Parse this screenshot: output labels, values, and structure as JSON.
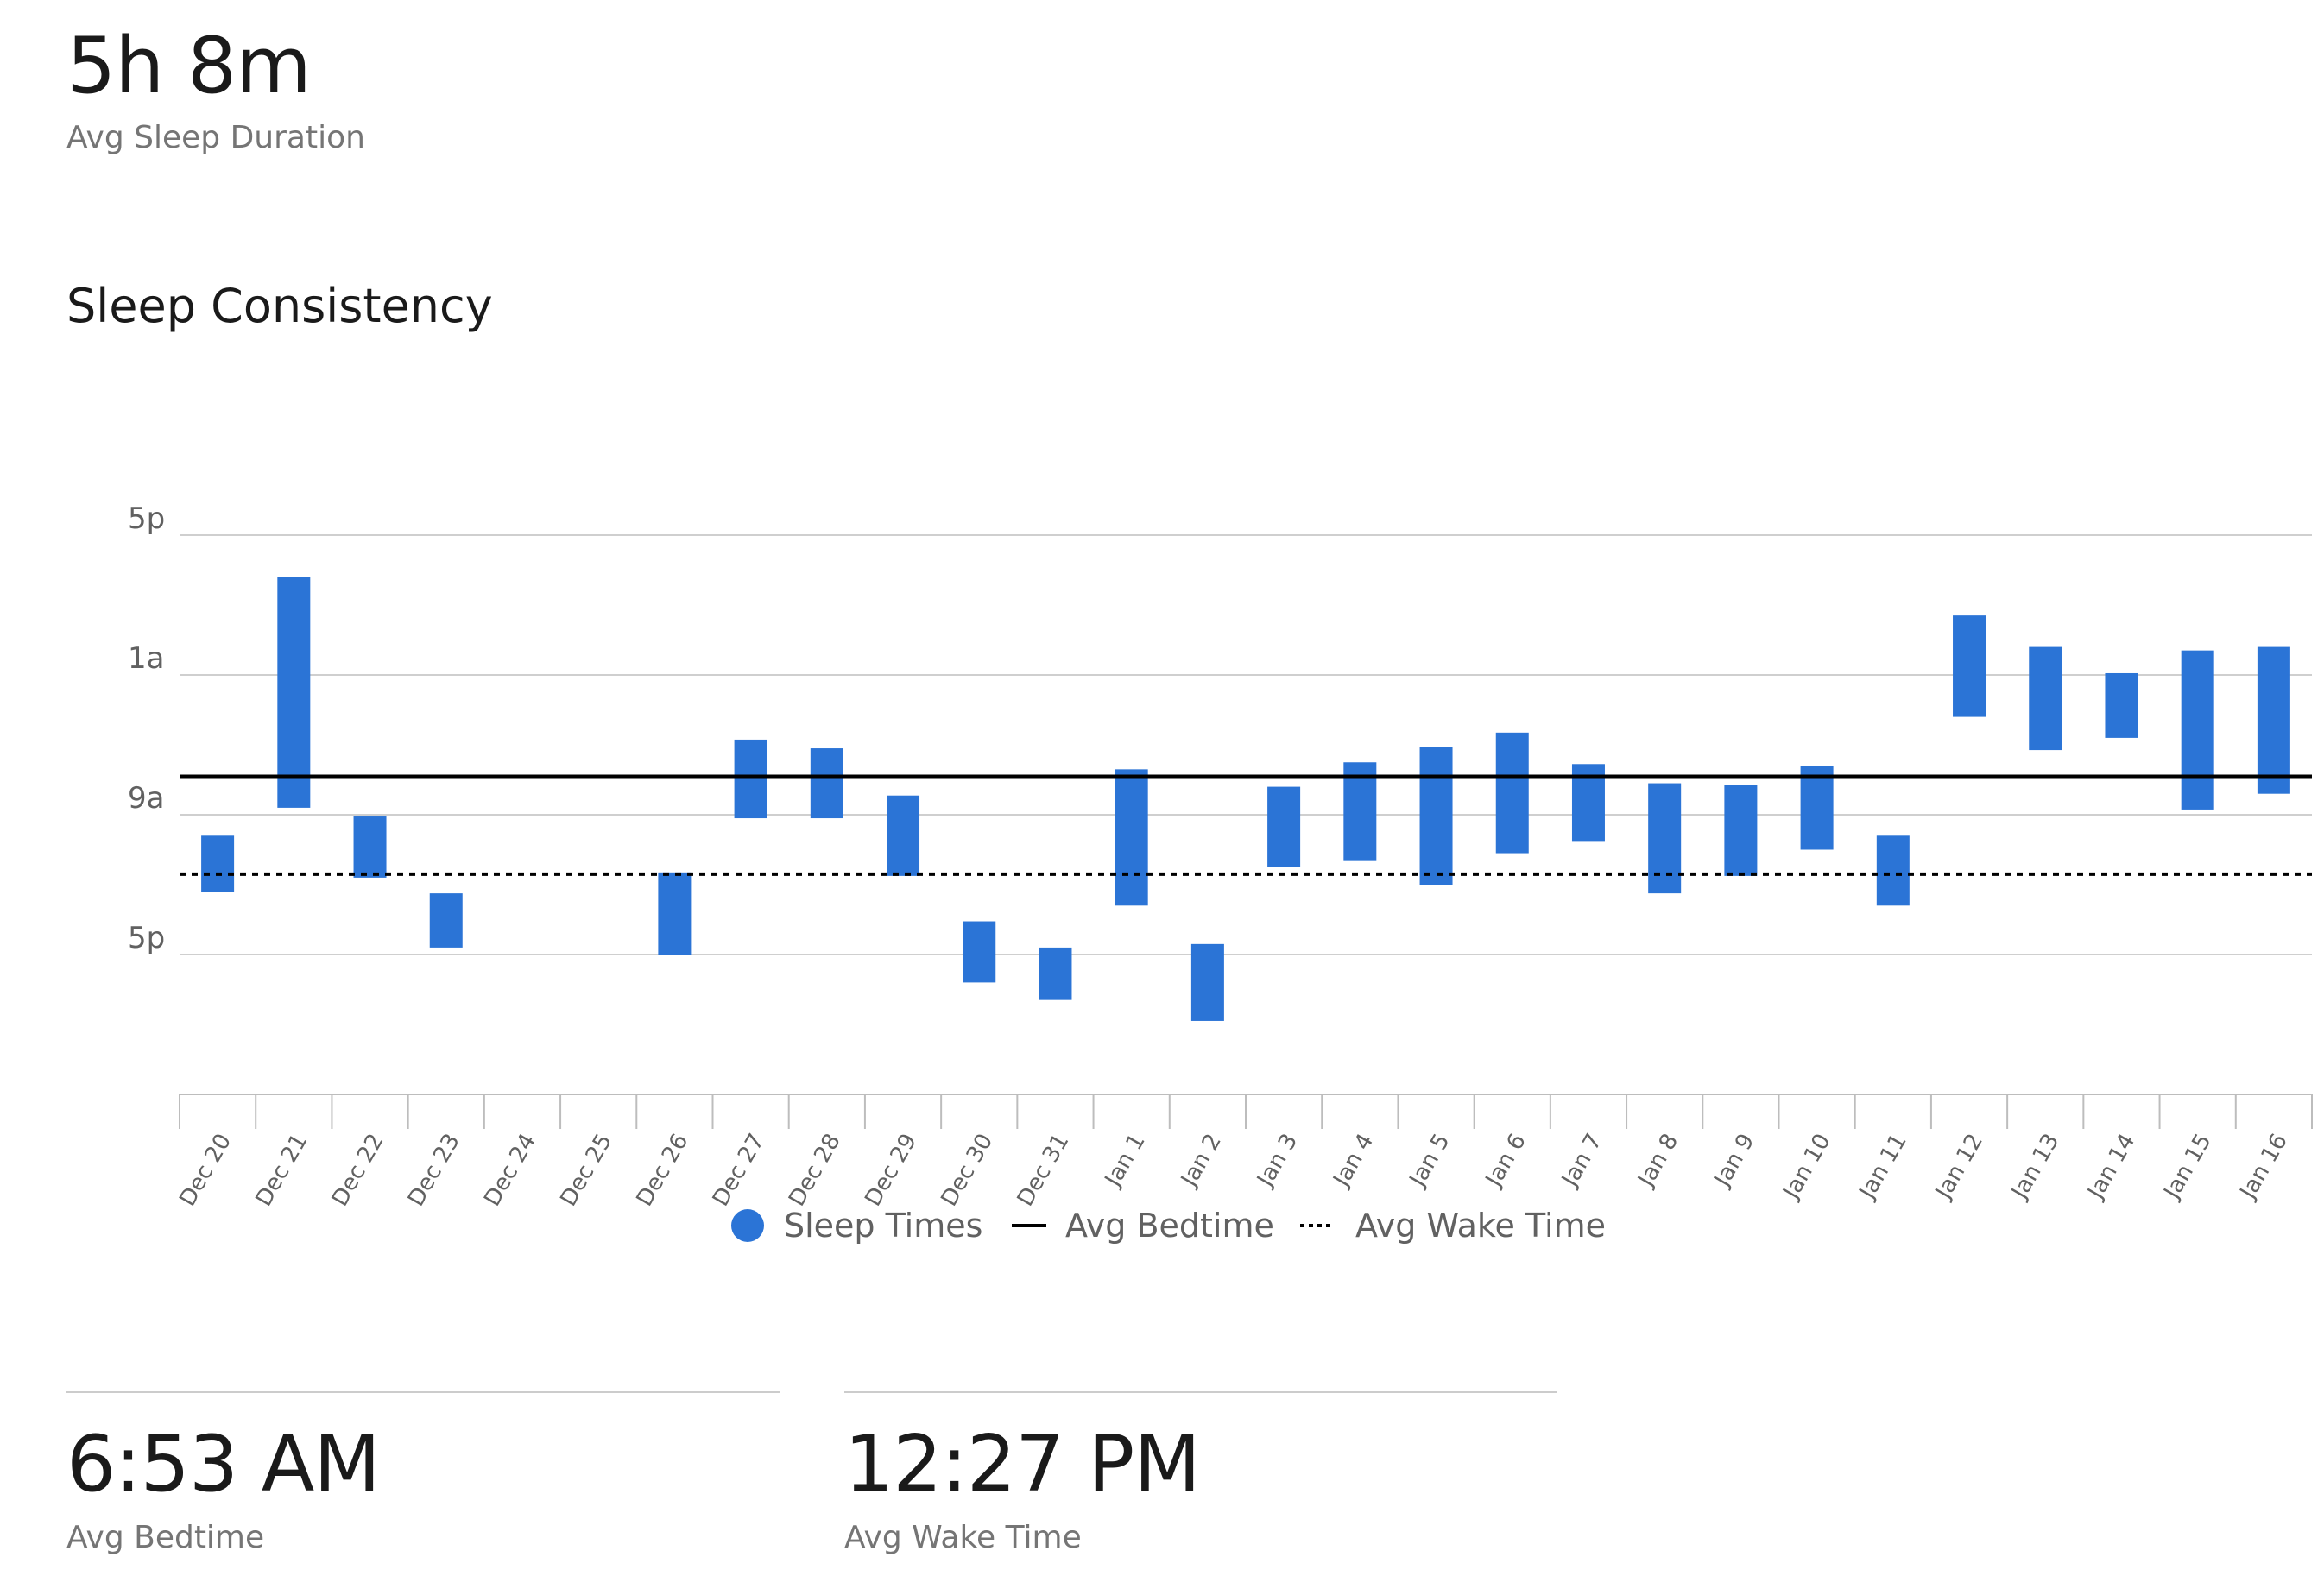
{
  "summary": {
    "duration_value": "5h 8m",
    "duration_label": "Avg Sleep Duration"
  },
  "chart_title": "Sleep Consistency",
  "chart_data": {
    "type": "bar",
    "title": "Sleep Consistency",
    "y_axis_ticks": [
      "5p",
      "1a",
      "9a",
      "5p"
    ],
    "y_axis_note": "hours elapsed since 5 PM of the previous day; 0 = 5p, 8 = 1a, 16 = 9a, 24 = 5p",
    "ylim": [
      -8,
      8
    ],
    "categories": [
      "Dec 20",
      "Dec 21",
      "Dec 22",
      "Dec 23",
      "Dec 24",
      "Dec 25",
      "Dec 26",
      "Dec 27",
      "Dec 28",
      "Dec 29",
      "Dec 30",
      "Dec 31",
      "Jan 1",
      "Jan 2",
      "Jan 3",
      "Jan 4",
      "Jan 5",
      "Jan 6",
      "Jan 7",
      "Jan 8",
      "Jan 9",
      "Jan 10",
      "Jan 11",
      "Jan 12",
      "Jan 13",
      "Jan 14",
      "Jan 15",
      "Jan 16"
    ],
    "series": [
      {
        "name": "Sleep Times",
        "color": "#2b74d6",
        "ranges": [
          [
            -2.2,
            -0.6
          ],
          [
            0.2,
            6.8
          ],
          [
            -1.8,
            -0.05
          ],
          [
            -3.8,
            -2.25
          ],
          null,
          null,
          [
            -4.0,
            -1.65
          ],
          [
            -0.1,
            2.15
          ],
          [
            -0.1,
            1.9
          ],
          [
            -1.75,
            0.55
          ],
          [
            -4.8,
            -3.05
          ],
          [
            -5.3,
            -3.8
          ],
          [
            -2.6,
            1.3
          ],
          [
            -5.9,
            -3.7
          ],
          [
            -1.5,
            0.8
          ],
          [
            -1.3,
            1.5
          ],
          [
            -2.0,
            1.95
          ],
          [
            -1.1,
            2.35
          ],
          [
            -0.75,
            1.45
          ],
          [
            -2.25,
            0.9
          ],
          [
            -1.75,
            0.85
          ],
          [
            -1.0,
            1.4
          ],
          [
            -2.6,
            -0.6
          ],
          [
            2.8,
            5.7
          ],
          [
            1.85,
            4.8
          ],
          [
            2.2,
            4.05
          ],
          [
            0.15,
            4.7
          ],
          [
            0.6,
            4.8
          ]
        ]
      },
      {
        "name": "Avg Bedtime",
        "value": 1.1,
        "style": "solid",
        "color": "#000000"
      },
      {
        "name": "Avg Wake Time",
        "value": -1.7,
        "style": "dotted",
        "color": "#000000"
      }
    ],
    "legend_position": "bottom-center",
    "grid": true
  },
  "stats": [
    {
      "value": "6:53 AM",
      "label": "Avg Bedtime"
    },
    {
      "value": "12:27 PM",
      "label": "Avg Wake Time"
    }
  ]
}
